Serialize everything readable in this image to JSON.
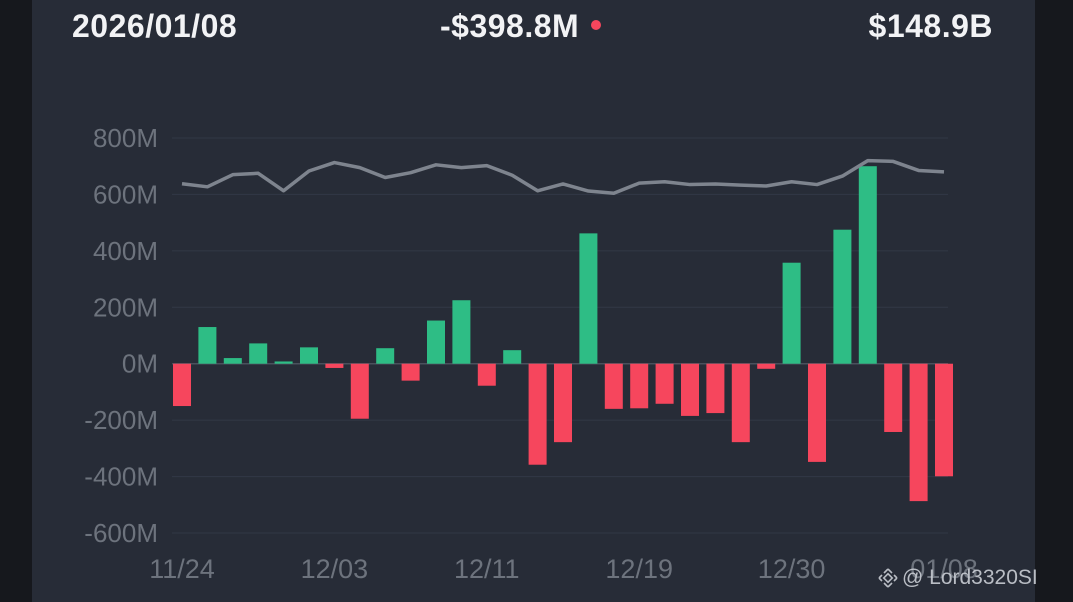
{
  "header": {
    "date": "2026/01/08",
    "net_flow": "-$398.8M",
    "total": "$148.9B"
  },
  "watermark": {
    "text": "@ Lord3320SI",
    "logo": "binance-logo-icon"
  },
  "colors": {
    "positive": "#2ebd85",
    "negative": "#f6465d",
    "line": "#7e848e",
    "grid": "#323846",
    "tick": "#6d737d"
  },
  "chart_data": {
    "type": "bar",
    "y_ticks": [
      "800M",
      "600M",
      "400M",
      "200M",
      "0M",
      "-200M",
      "-400M",
      "-600M"
    ],
    "y_tick_values": [
      800,
      600,
      400,
      200,
      0,
      -200,
      -400,
      -600
    ],
    "x_tick_labels": [
      "11/24",
      "12/03",
      "12/11",
      "12/19",
      "12/30",
      "01/08"
    ],
    "x_tick_index": [
      0,
      6,
      12,
      18,
      24,
      30
    ],
    "ylim": [
      -600,
      800
    ],
    "grid": true,
    "series": [
      {
        "type": "bar",
        "unit": "M",
        "values": [
          -150,
          130,
          20,
          72,
          8,
          58,
          -15,
          -195,
          55,
          -60,
          153,
          225,
          -78,
          48,
          -358,
          -278,
          462,
          -160,
          -158,
          -142,
          -185,
          -175,
          -278,
          -18,
          358,
          -348,
          475,
          700,
          -242,
          -487,
          -399
        ]
      },
      {
        "type": "line",
        "values": [
          638,
          627,
          670,
          675,
          613,
          683,
          713,
          695,
          660,
          677,
          705,
          695,
          702,
          668,
          613,
          637,
          612,
          604,
          640,
          645,
          635,
          637,
          633,
          630,
          645,
          635,
          665,
          720,
          717,
          685,
          680
        ]
      }
    ]
  }
}
